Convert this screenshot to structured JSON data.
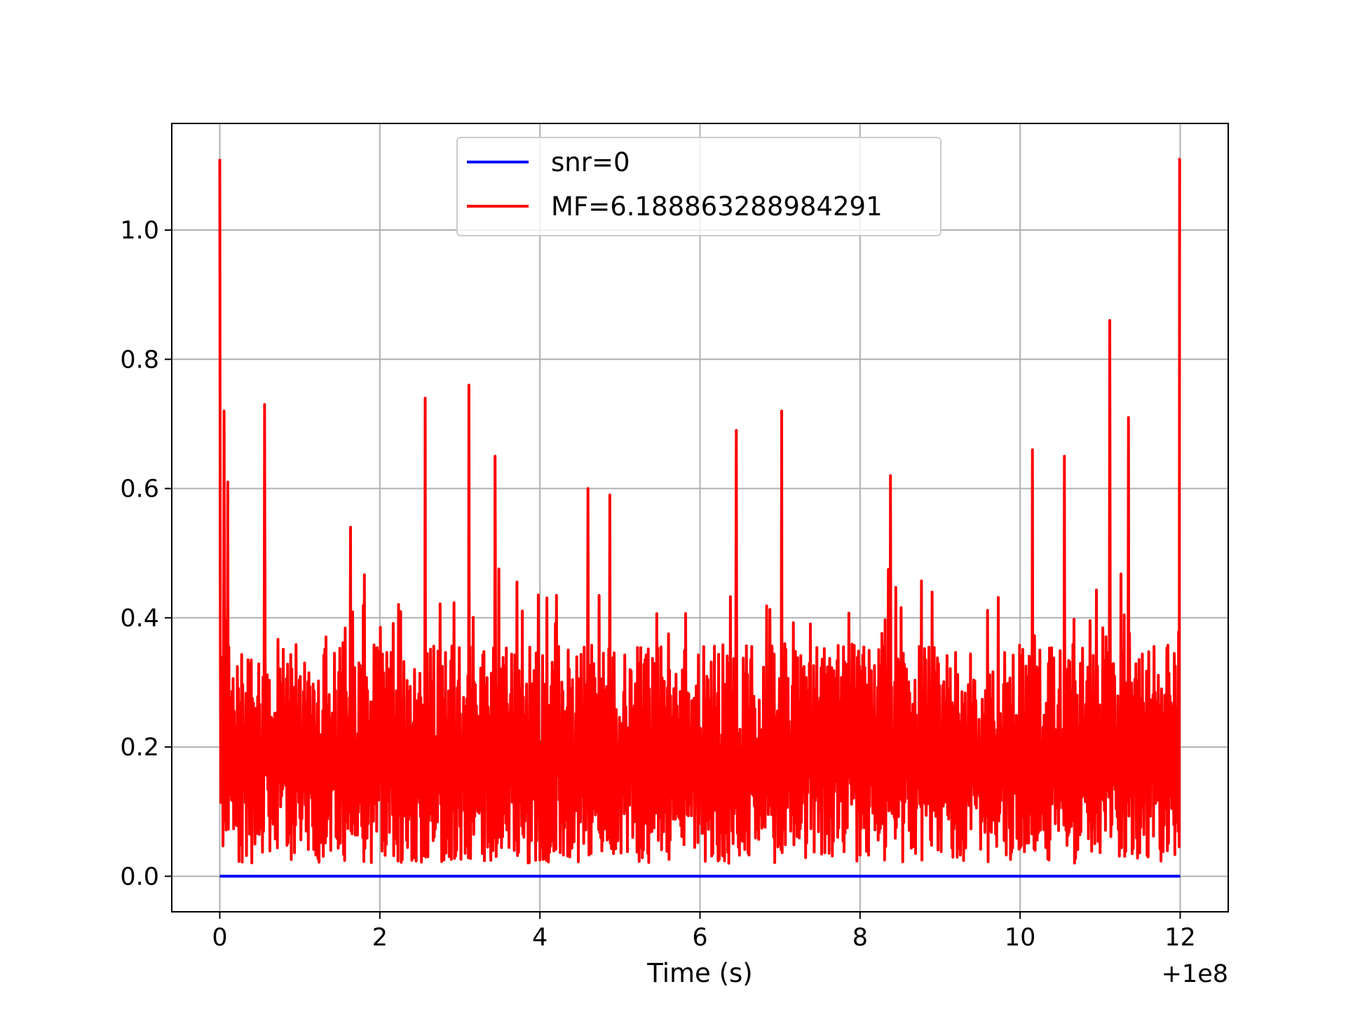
{
  "chart_data": {
    "type": "line",
    "title": "",
    "xlabel": "Time (s)",
    "ylabel": "",
    "x_offset_label": "+1e8",
    "x_offset": 100000000,
    "xlim": [
      -0.6,
      12.6
    ],
    "ylim": [
      -0.055,
      1.165
    ],
    "xticks": [
      0,
      2,
      4,
      6,
      8,
      10,
      12
    ],
    "xtick_labels": [
      "0",
      "2",
      "4",
      "6",
      "8",
      "10",
      "12"
    ],
    "yticks": [
      0.0,
      0.2,
      0.4,
      0.6,
      0.8,
      1.0
    ],
    "ytick_labels": [
      "0.0",
      "0.2",
      "0.4",
      "0.6",
      "0.8",
      "1.0"
    ],
    "grid": true,
    "legend_position": "upper-center",
    "series": [
      {
        "name": "snr=0",
        "color": "#0000ff",
        "x": [
          0,
          12
        ],
        "y": [
          0.0,
          0.0
        ]
      },
      {
        "name": "MF=6.188863288984291",
        "color": "#ff0000",
        "x_range": [
          0,
          12
        ],
        "y_range": [
          0.0,
          1.11
        ],
        "peaks": [
          {
            "x": 0.0,
            "y": 1.11
          },
          {
            "x": 0.05,
            "y": 0.72
          },
          {
            "x": 0.1,
            "y": 0.61
          },
          {
            "x": 0.56,
            "y": 0.73
          },
          {
            "x": 1.63,
            "y": 0.54
          },
          {
            "x": 2.57,
            "y": 0.74
          },
          {
            "x": 3.11,
            "y": 0.76
          },
          {
            "x": 3.44,
            "y": 0.65
          },
          {
            "x": 4.6,
            "y": 0.6
          },
          {
            "x": 4.87,
            "y": 0.59
          },
          {
            "x": 6.45,
            "y": 0.69
          },
          {
            "x": 7.02,
            "y": 0.72
          },
          {
            "x": 8.38,
            "y": 0.62
          },
          {
            "x": 10.15,
            "y": 0.66
          },
          {
            "x": 10.55,
            "y": 0.65
          },
          {
            "x": 11.12,
            "y": 0.86
          },
          {
            "x": 11.35,
            "y": 0.71
          },
          {
            "x": 11.99,
            "y": 1.11
          }
        ]
      }
    ]
  }
}
